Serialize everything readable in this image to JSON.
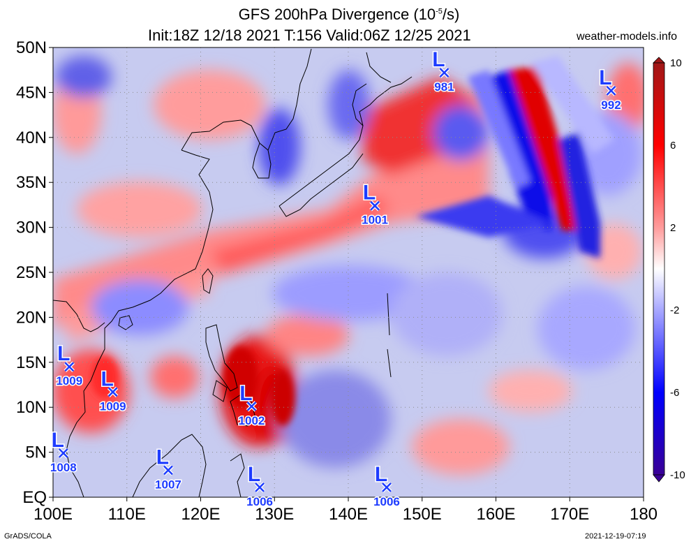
{
  "title_line1_prefix": "GFS 200hPa Divergence (10",
  "title_line1_exp": "-5",
  "title_line1_suffix": "/s)",
  "title_line2": "Init:18Z 12/18 2021 T:156 Valid:06Z 12/25 2021",
  "site": "weather-models.info",
  "credit": "GrADS/COLA",
  "timestamp": "2021-12-19-07:19",
  "axes": {
    "lat": [
      [
        "50N",
        50
      ],
      [
        "45N",
        45
      ],
      [
        "40N",
        40
      ],
      [
        "35N",
        35
      ],
      [
        "30N",
        30
      ],
      [
        "25N",
        25
      ],
      [
        "20N",
        20
      ],
      [
        "15N",
        15
      ],
      [
        "10N",
        10
      ],
      [
        "5N",
        5
      ],
      [
        "EQ",
        0
      ]
    ],
    "lon": [
      [
        "100E",
        100
      ],
      [
        "110E",
        110
      ],
      [
        "120E",
        120
      ],
      [
        "130E",
        130
      ],
      [
        "140E",
        140
      ],
      [
        "150E",
        150
      ],
      [
        "160E",
        160
      ],
      [
        "170E",
        170
      ],
      [
        "180",
        180
      ]
    ],
    "lat_range": [
      0,
      50
    ],
    "lon_range": [
      100,
      180
    ]
  },
  "colorbar": {
    "labels": [
      "10",
      "6",
      "2",
      "-2",
      "-6",
      "-10"
    ],
    "values": [
      10,
      6,
      2,
      -2,
      -6,
      -10
    ],
    "colors": [
      "#b01010",
      "#e00000",
      "#ff3030",
      "#ff8080",
      "#ffc4c4",
      "#ffffff",
      "#c8c8ff",
      "#8080ff",
      "#3030ff",
      "#0000e0",
      "#3a0096"
    ]
  },
  "lows": [
    {
      "letter": "L",
      "lon": 153.0,
      "lat": 47.2,
      "value": "981"
    },
    {
      "letter": "L",
      "lon": 175.6,
      "lat": 45.2,
      "value": "992"
    },
    {
      "letter": "L",
      "lon": 143.6,
      "lat": 32.4,
      "value": "1001"
    },
    {
      "letter": "L",
      "lon": 102.2,
      "lat": 14.5,
      "value": "1009"
    },
    {
      "letter": "L",
      "lon": 108.1,
      "lat": 11.7,
      "value": "1009"
    },
    {
      "letter": "L",
      "lon": 126.9,
      "lat": 10.1,
      "value": "1002"
    },
    {
      "letter": "L",
      "lon": 101.4,
      "lat": 4.9,
      "value": "1008"
    },
    {
      "letter": "L",
      "lon": 115.6,
      "lat": 3.0,
      "value": "1007"
    },
    {
      "letter": "L",
      "lon": 128.0,
      "lat": 1.1,
      "value": "1006"
    },
    {
      "letter": "L",
      "lon": 145.2,
      "lat": 1.1,
      "value": "1006"
    }
  ],
  "colors": {
    "low_marker": "#1e3cff",
    "grid": "#8c8c8c"
  }
}
